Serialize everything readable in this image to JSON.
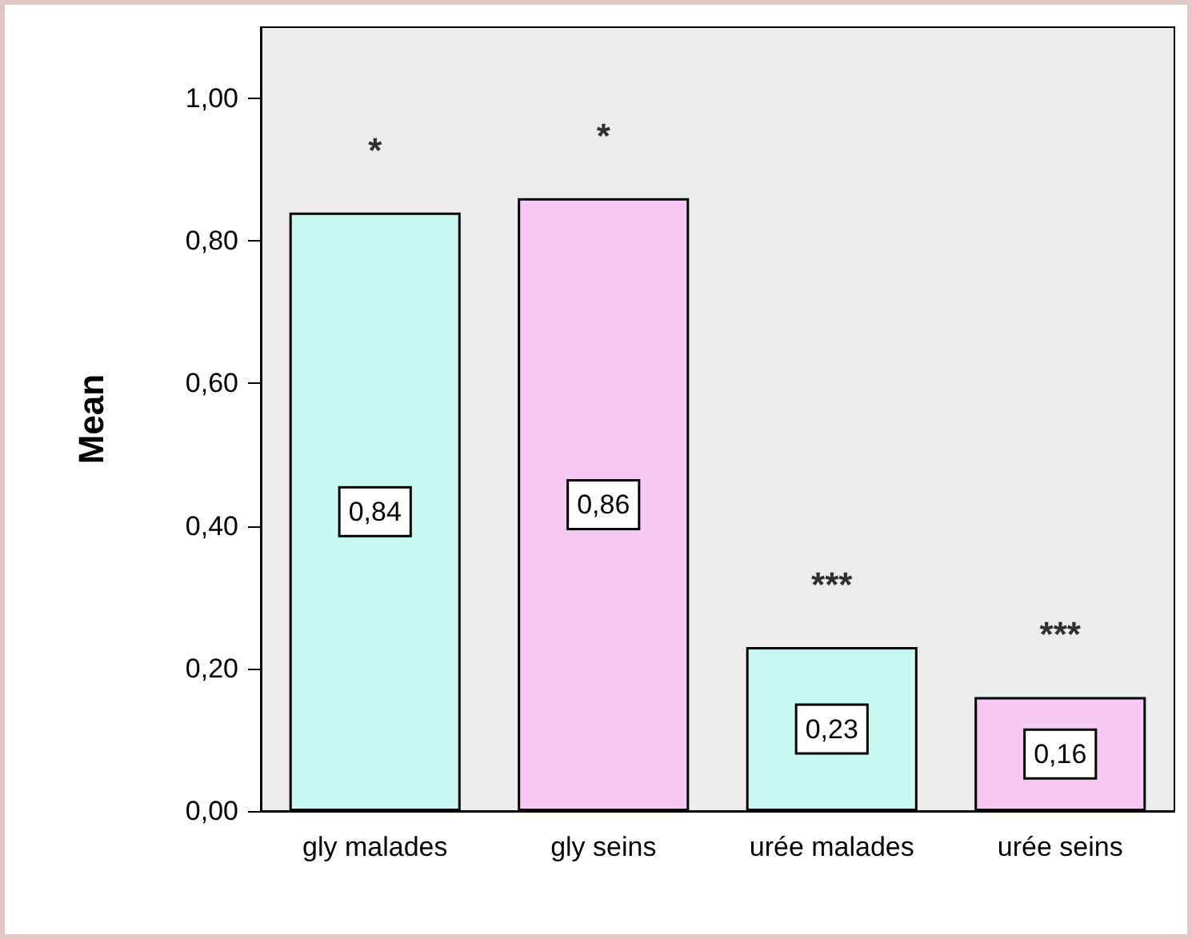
{
  "chart_data": {
    "type": "bar",
    "ylabel": "Mean",
    "categories": [
      "gly malades",
      "gly seins",
      "urée malades",
      "urée seins"
    ],
    "values": [
      0.84,
      0.86,
      0.23,
      0.16
    ],
    "colors": [
      "#c8f7f4",
      "#f7c8f4",
      "#c8f7f4",
      "#f7c8f4"
    ],
    "value_labels": [
      "0,84",
      "0,86",
      "0,23",
      "0,16"
    ],
    "ylim": [
      0,
      1.1
    ],
    "yticks": [
      {
        "value": 0,
        "label": "0,00"
      },
      {
        "value": 0.2,
        "label": "0,20"
      },
      {
        "value": 0.4,
        "label": "0,40"
      },
      {
        "value": 0.6,
        "label": "0,60"
      },
      {
        "value": 0.8,
        "label": "0,80"
      },
      {
        "value": 1,
        "label": "1,00"
      }
    ],
    "grid": false,
    "annotations": [
      "*",
      "*",
      "***",
      "***"
    ]
  }
}
